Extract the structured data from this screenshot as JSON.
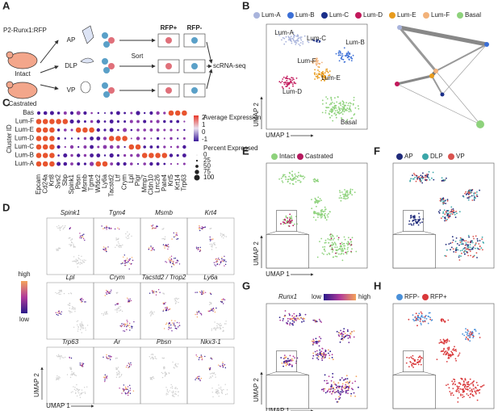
{
  "panels": {
    "A": {
      "label": "A",
      "mouse_line": "P2-Runx1:RFP",
      "conditions": [
        "Intact",
        "Castrated"
      ],
      "lobes": [
        "AP",
        "DLP",
        "VP"
      ],
      "step": "Sort",
      "gates": [
        "RFP+",
        "RFP-"
      ],
      "output": "scRNA-seq"
    },
    "B": {
      "label": "B",
      "legend": [
        {
          "name": "Lum-A",
          "color": "#a9b4dc"
        },
        {
          "name": "Lum-B",
          "color": "#3b6fd6"
        },
        {
          "name": "Lum-C",
          "color": "#1a2f8a"
        },
        {
          "name": "Lum-D",
          "color": "#c2185b"
        },
        {
          "name": "Lum-E",
          "color": "#e89b1c"
        },
        {
          "name": "Lum-F",
          "color": "#f2b27a"
        },
        {
          "name": "Basal",
          "color": "#8ed27c"
        }
      ],
      "x_axis": "UMAP 1",
      "y_axis": "UMAP 2"
    },
    "C": {
      "label": "C",
      "y_axis": "Cluster ID",
      "clusters": [
        "Bas",
        "Lum-F",
        "Lum-E",
        "Lum-D",
        "Lum-C",
        "Lum-B",
        "Lum-A"
      ],
      "genes": [
        "Epcam",
        "Cd24a",
        "Krt8",
        "Svs2",
        "Sbp",
        "Spink1",
        "Pbsn",
        "Msmb",
        "Tgm4",
        "Wfdc2",
        "Ly6a",
        "Tacstd2",
        "Ltf",
        "Crym",
        "Lpl",
        "Pigr",
        "Mmp7",
        "Cldn10",
        "Lrrc26",
        "Pate4",
        "Krt5",
        "Krt14",
        "Trp63"
      ],
      "color_title": "Average Expression",
      "color_ticks": [
        2,
        1,
        0,
        -1
      ],
      "size_title": "Percent Expressed",
      "size_ticks": [
        0,
        25,
        50,
        75,
        100
      ]
    },
    "D": {
      "label": "D",
      "genes": [
        "Spink1",
        "Tgm4",
        "Msmb",
        "Krt4",
        "Lpl",
        "Crym",
        "Tacstd2 / Trop2",
        "Ly6a",
        "Trp63",
        "Ar",
        "Pbsn",
        "Nkx3-1"
      ],
      "scale_high": "high",
      "scale_low": "low",
      "x_axis": "UMAP 1",
      "y_axis": "UMAP 2"
    },
    "E": {
      "label": "E",
      "legend": [
        {
          "name": "Intact",
          "color": "#8ed27c"
        },
        {
          "name": "Castrated",
          "color": "#b5195e"
        }
      ],
      "x_axis": "UMAP 1",
      "y_axis": "UMAP 2"
    },
    "F": {
      "label": "F",
      "legend": [
        {
          "name": "AP",
          "color": "#1f2a7a"
        },
        {
          "name": "DLP",
          "color": "#3aa6a8"
        },
        {
          "name": "VP",
          "color": "#d9534f"
        }
      ]
    },
    "G": {
      "label": "G",
      "gene": "Runx1",
      "scale_low": "low",
      "scale_high": "high",
      "x_axis": "UMAP 1",
      "y_axis": "UMAP 2"
    },
    "H": {
      "label": "H",
      "legend": [
        {
          "name": "RFP-",
          "color": "#4a90d9"
        },
        {
          "name": "RFP+",
          "color": "#d9383a"
        }
      ]
    }
  }
}
